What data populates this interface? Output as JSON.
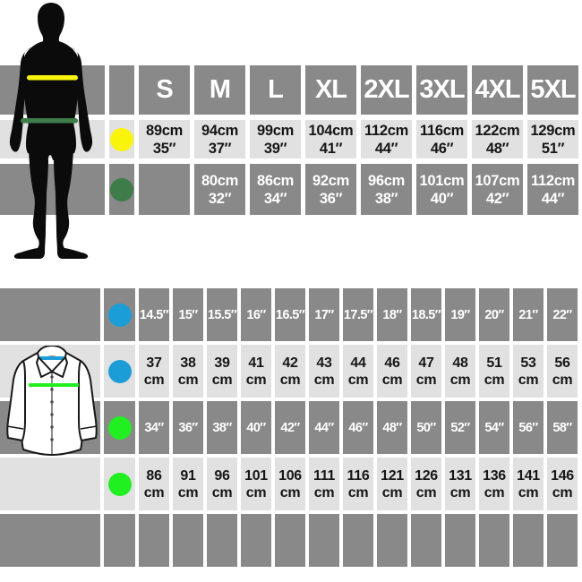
{
  "meta": {
    "description": "Clothing size chart: body measurements table (S-5XL) with male silhouette, and shirt collar/chest table with shirt illustration"
  },
  "colors": {
    "row_dark": "#898989",
    "row_light": "#e1e1e1",
    "text_dark": "#161616",
    "text_light": "#ffffff",
    "silhouette": "#0b0b0b",
    "chest_dot": "#f9f409",
    "waist_dot": "#3e7c49",
    "collar_dot": "#1b9ed8",
    "shirt_chest_dot": "#20f020",
    "shirt_outline": "#181818",
    "button": "#4a4a4a"
  },
  "icons": {
    "man": "male-body-silhouette",
    "shirt": "dress-shirt-illustration",
    "chest_dot": "yellow-dot",
    "waist_dot": "dark-green-dot",
    "collar_dot": "blue-dot",
    "shirt_chest_dot": "green-dot"
  },
  "top_table": {
    "size_headers": [
      "S",
      "M",
      "L",
      "XL",
      "2XL",
      "3XL",
      "4XL",
      "5XL"
    ],
    "rows": [
      {
        "dot": "chest_dot",
        "measure": "chest",
        "cells": [
          [
            "89cm",
            "35″"
          ],
          [
            "94cm",
            "37″"
          ],
          [
            "99cm",
            "39″"
          ],
          [
            "104cm",
            "41″"
          ],
          [
            "112cm",
            "44″"
          ],
          [
            "116cm",
            "46″"
          ],
          [
            "122cm",
            "48″"
          ],
          [
            "129cm",
            "51″"
          ]
        ]
      },
      {
        "dot": "waist_dot",
        "measure": "waist",
        "cells": [
          [],
          [
            "80cm",
            "32″"
          ],
          [
            "86cm",
            "34″"
          ],
          [
            "92cm",
            "36″"
          ],
          [
            "96cm",
            "38″"
          ],
          [
            "101cm",
            "40″"
          ],
          [
            "107cm",
            "42″"
          ],
          [
            "112cm",
            "44″"
          ]
        ]
      }
    ]
  },
  "bottom_table": {
    "rows": [
      {
        "dot": "collar_dot",
        "measure": "collar-inches",
        "shade": "dark",
        "cells": [
          [
            "14.5″"
          ],
          [
            "15″"
          ],
          [
            "15.5″"
          ],
          [
            "16″"
          ],
          [
            "16.5″"
          ],
          [
            "17″"
          ],
          [
            "17.5″"
          ],
          [
            "18″"
          ],
          [
            "18.5″"
          ],
          [
            "19″"
          ],
          [
            "20″"
          ],
          [
            "21″"
          ],
          [
            "22″"
          ]
        ]
      },
      {
        "dot": "collar_dot",
        "measure": "collar-cm",
        "shade": "light",
        "cells": [
          [
            "37",
            "cm"
          ],
          [
            "38",
            "cm"
          ],
          [
            "39",
            "cm"
          ],
          [
            "41",
            "cm"
          ],
          [
            "42",
            "cm"
          ],
          [
            "43",
            "cm"
          ],
          [
            "44",
            "cm"
          ],
          [
            "46",
            "cm"
          ],
          [
            "47",
            "cm"
          ],
          [
            "48",
            "cm"
          ],
          [
            "51",
            "cm"
          ],
          [
            "53",
            "cm"
          ],
          [
            "56",
            "cm"
          ]
        ]
      },
      {
        "dot": "shirt_chest_dot",
        "measure": "chest-inches",
        "shade": "dark",
        "cells": [
          [
            "34″"
          ],
          [
            "36″"
          ],
          [
            "38″"
          ],
          [
            "40″"
          ],
          [
            "42″"
          ],
          [
            "44″"
          ],
          [
            "46″"
          ],
          [
            "48″"
          ],
          [
            "50″"
          ],
          [
            "52″"
          ],
          [
            "54″"
          ],
          [
            "56″"
          ],
          [
            "58″"
          ]
        ]
      },
      {
        "dot": "shirt_chest_dot",
        "measure": "chest-cm",
        "shade": "light",
        "cells": [
          [
            "86",
            "cm"
          ],
          [
            "91",
            "cm"
          ],
          [
            "96",
            "cm"
          ],
          [
            "101",
            "cm"
          ],
          [
            "106",
            "cm"
          ],
          [
            "111",
            "cm"
          ],
          [
            "116",
            "cm"
          ],
          [
            "121",
            "cm"
          ],
          [
            "126",
            "cm"
          ],
          [
            "131",
            "cm"
          ],
          [
            "136",
            "cm"
          ],
          [
            "141",
            "cm"
          ],
          [
            "146",
            "cm"
          ]
        ]
      },
      {
        "dot": null,
        "measure": "empty",
        "shade": "dark",
        "cells": [
          [],
          [],
          [],
          [],
          [],
          [],
          [],
          [],
          [],
          [],
          [],
          [],
          []
        ]
      }
    ]
  }
}
